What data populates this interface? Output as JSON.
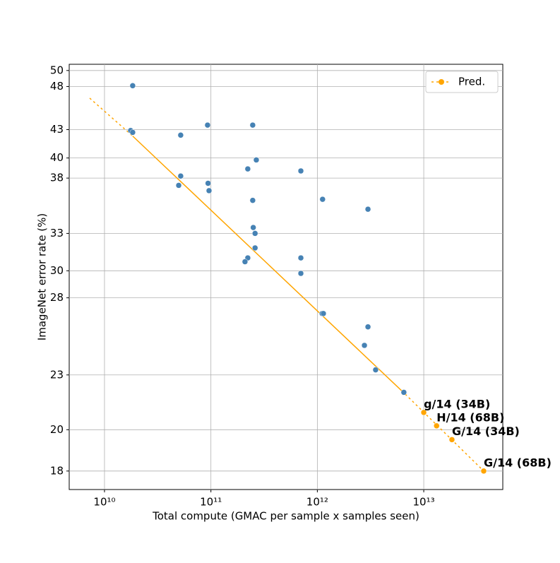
{
  "chart_data": {
    "type": "scatter",
    "x_label": "Total compute (GMAC per sample x samples seen)",
    "y_label": "ImageNet error rate (%)",
    "xscale": "log",
    "yscale": "log",
    "grid": true,
    "legend": "upper right",
    "xlim": [
      4660000000.0,
      55300000000000.0
    ],
    "ylim": [
      17.17,
      50.8
    ],
    "xticks": [
      {
        "value": 10000000000.0,
        "label": "10¹⁰"
      },
      {
        "value": 100000000000.0,
        "label": "10¹¹"
      },
      {
        "value": 1000000000000.0,
        "label": "10¹²"
      },
      {
        "value": 10000000000000.0,
        "label": "10¹³"
      }
    ],
    "yticks": [
      18,
      20,
      23,
      28,
      30,
      33,
      38,
      40,
      43,
      48,
      50
    ],
    "series": [
      {
        "color": "#4682b4",
        "x": [
          18400000000.0,
          17600000000.0,
          18400000000.0,
          52000000000.0,
          93000000000.0,
          247000000000.0,
          267000000000.0,
          222000000000.0,
          700000000000.0,
          52000000000.0,
          49800000000.0,
          94000000000.0,
          96000000000.0,
          247000000000.0,
          1120000000000.0,
          2990000000000.0,
          250000000000.0,
          260000000000.0,
          260000000000.0,
          222000000000.0,
          209000000000.0,
          700000000000.0,
          700000000000.0,
          1110000000000.0,
          1140000000000.0,
          2990000000000.0,
          2770000000000.0,
          3530000000000.0,
          6500000000000.0
        ],
        "values": [
          48.1,
          42.9,
          42.7,
          42.4,
          43.5,
          43.5,
          39.8,
          38.9,
          38.7,
          38.2,
          37.3,
          37.5,
          36.8,
          35.9,
          36.0,
          35.1,
          33.5,
          33.0,
          31.8,
          31.0,
          30.7,
          31.0,
          29.8,
          26.9,
          26.9,
          26.0,
          24.8,
          23.3,
          22.0
        ]
      },
      {
        "name": "Pred.",
        "color": "#ffa500",
        "x": [
          10000000000000.0,
          13200000000000.0,
          18400000000000.0,
          36600000000000.0
        ],
        "values": [
          20.9,
          20.2,
          19.5,
          18.0
        ],
        "labels": [
          "g/14 (34B)",
          "H/14 (68B)",
          "G/14 (34B)",
          "G/14 (68B)"
        ]
      }
    ],
    "trend": {
      "color": "#ffa500",
      "x": [
        7260000000.0,
        18400000000.0,
        6700000000000.0,
        36600000000000.0
      ],
      "values": [
        46.6,
        42.3,
        21.9,
        18.0
      ],
      "linestyles": [
        "dotted",
        "solid",
        "dotted"
      ]
    }
  }
}
